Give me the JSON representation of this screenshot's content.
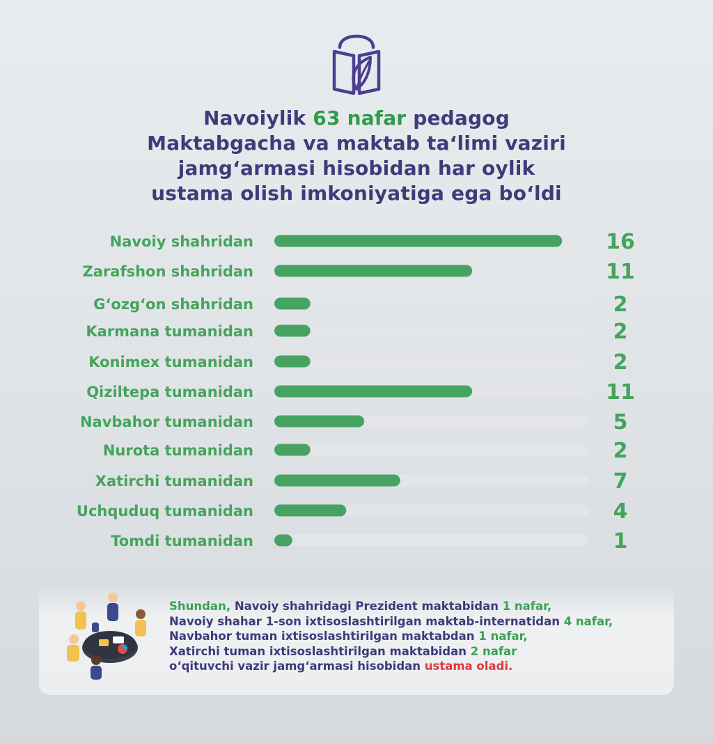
{
  "header": {
    "title_line1_pre": "Navoiylik ",
    "title_line1_hl": "63 nafar",
    "title_line1_post": " pedagog",
    "title_line2": "Maktabgacha va maktab ta‘limi vaziri",
    "title_line3": "jamg‘armasi hisobidan har oylik",
    "title_line4": "ustama olish imkoniyatiga ega bo‘ldi"
  },
  "icons": {
    "logo": "book-leaf-icon",
    "illustration": "meeting-people-icon"
  },
  "colors": {
    "title": "#3f3a7a",
    "accent_green": "#2e9a4a",
    "bar": "#47a362",
    "track": "#e3e5e8",
    "highlight_red": "#e2373b"
  },
  "chart_data": {
    "type": "bar",
    "orientation": "horizontal",
    "categories": [
      "Navoiy shahridan",
      "Zarafshon shahridan",
      "G‘ozg‘on shahridan",
      "Karmana tumanidan",
      "Konimex tumanidan",
      "Qiziltepa tumanidan",
      "Navbahor tumanidan",
      "Nurota tumanidan",
      "Xatirchi tumanidan",
      "Uchquduq tumanidan",
      "Tomdi tumanidan"
    ],
    "values": [
      16,
      11,
      2,
      2,
      2,
      11,
      5,
      2,
      7,
      4,
      1
    ],
    "xlim": [
      0,
      17.5
    ],
    "grid": false,
    "legend": "none"
  },
  "note": {
    "l1_a": "Shundan, ",
    "l1_b": "Navoiy shahridagi Prezident maktabidan ",
    "l1_c": "1 nafar,",
    "l2_a": "Navoiy shahar 1-son ixtisoslashtirilgan maktab-internatidan ",
    "l2_b": "4 nafar,",
    "l3_a": "Navbahor tuman ixtisoslashtirilgan  maktabdan ",
    "l3_b": "1 nafar,",
    "l4_a": "Xatirchi tuman ixtisoslashtirilgan maktabidan ",
    "l4_b": "2 nafar",
    "l5_a": "o‘qituvchi vazir jamg‘armasi hisobidan ",
    "l5_b": "ustama oladi."
  }
}
